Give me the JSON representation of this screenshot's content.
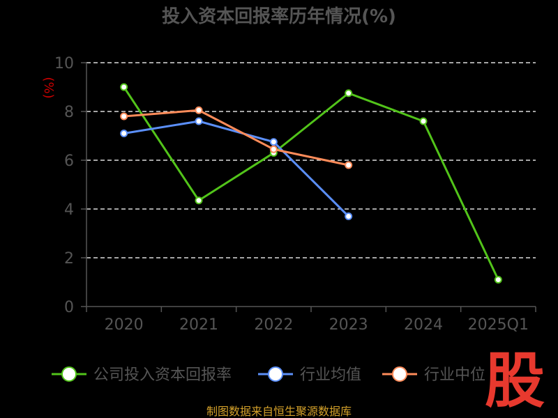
{
  "chart_data": {
    "type": "line",
    "title": "投入资本回报率历年情况(%)",
    "ylabel": "(%)",
    "categories": [
      "2020",
      "2021",
      "2022",
      "2023",
      "2024",
      "2025Q1"
    ],
    "ylim": [
      0,
      10
    ],
    "yticks": [
      0,
      2,
      4,
      6,
      8,
      10
    ],
    "grid": true,
    "legend_position": "bottom",
    "series": [
      {
        "name": "公司投入资本回报率",
        "color": "#52c41a",
        "values": [
          9.0,
          4.35,
          6.3,
          8.75,
          7.6,
          1.1
        ]
      },
      {
        "name": "行业均值",
        "color": "#5b8ff9",
        "values": [
          7.1,
          7.6,
          6.75,
          3.7,
          null,
          null
        ]
      },
      {
        "name": "行业中位",
        "color": "#ff8c5a",
        "values": [
          7.8,
          8.05,
          6.45,
          5.8,
          null,
          null
        ]
      }
    ]
  },
  "footer": {
    "source": "制图数据来自恒生聚源数据库"
  },
  "stamp": {
    "text": "股"
  }
}
